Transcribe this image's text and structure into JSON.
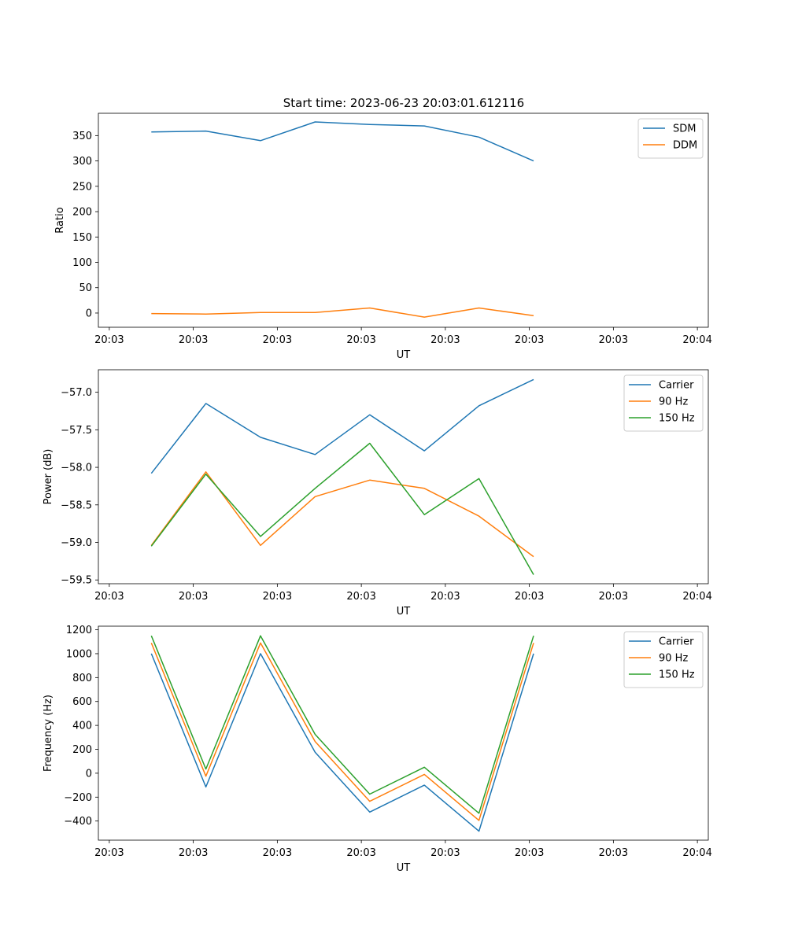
{
  "figure": {
    "title": "Start time: 2023-06-23 20:03:01.612116"
  },
  "colors": {
    "blue": "#1f77b4",
    "orange": "#ff7f0e",
    "green": "#2ca02c"
  },
  "chart_data": [
    {
      "type": "line",
      "xlabel": "UT",
      "ylabel": "Ratio",
      "x_tick_labels": [
        "20:03",
        "20:03",
        "20:03",
        "20:03",
        "20:03",
        "20:03",
        "20:03",
        "20:04"
      ],
      "x_tick_positions": [
        -1,
        0,
        1,
        2,
        3,
        4,
        5,
        6
      ],
      "xlim": [
        -1.13,
        6.13
      ],
      "x": [
        -0.5,
        0.15,
        0.8,
        1.45,
        2.1,
        2.75,
        3.4,
        4.05
      ],
      "ylim": [
        -28,
        394
      ],
      "yticks": [
        0,
        50,
        100,
        150,
        200,
        250,
        300,
        350
      ],
      "legend_position": "top-right",
      "series": [
        {
          "name": "SDM",
          "color": "#1f77b4",
          "values": [
            357,
            359,
            340,
            377,
            372,
            369,
            347,
            300
          ]
        },
        {
          "name": "DDM",
          "color": "#ff7f0e",
          "values": [
            -1,
            -2,
            1,
            1,
            10,
            -8,
            10,
            -5
          ]
        }
      ]
    },
    {
      "type": "line",
      "xlabel": "UT",
      "ylabel": "Power (dB)",
      "x_tick_labels": [
        "20:03",
        "20:03",
        "20:03",
        "20:03",
        "20:03",
        "20:03",
        "20:03",
        "20:04"
      ],
      "x_tick_positions": [
        -1,
        0,
        1,
        2,
        3,
        4,
        5,
        6
      ],
      "xlim": [
        -1.13,
        6.13
      ],
      "x": [
        -0.5,
        0.15,
        0.8,
        1.45,
        2.1,
        2.75,
        3.4,
        4.05
      ],
      "ylim": [
        -59.55,
        -56.7
      ],
      "yticks": [
        -59.5,
        -59.0,
        -58.5,
        -58.0,
        -57.5,
        -57.0
      ],
      "ytick_labels": [
        "−59.5",
        "−59.0",
        "−58.5",
        "−58.0",
        "−57.5",
        "−57.0"
      ],
      "legend_position": "top-right",
      "series": [
        {
          "name": "Carrier",
          "color": "#1f77b4",
          "values": [
            -58.08,
            -57.15,
            -57.6,
            -57.83,
            -57.3,
            -57.78,
            -57.18,
            -56.83
          ]
        },
        {
          "name": "90 Hz",
          "color": "#ff7f0e",
          "values": [
            -59.04,
            -58.06,
            -59.04,
            -58.39,
            -58.17,
            -58.28,
            -58.65,
            -59.19
          ]
        },
        {
          "name": "150 Hz",
          "color": "#2ca02c",
          "values": [
            -59.05,
            -58.09,
            -58.92,
            -58.28,
            -57.68,
            -58.63,
            -58.15,
            -59.43
          ]
        }
      ]
    },
    {
      "type": "line",
      "xlabel": "UT",
      "ylabel": "Frequency (Hz)",
      "x_tick_labels": [
        "20:03",
        "20:03",
        "20:03",
        "20:03",
        "20:03",
        "20:03",
        "20:03",
        "20:04"
      ],
      "x_tick_positions": [
        -1,
        0,
        1,
        2,
        3,
        4,
        5,
        6
      ],
      "xlim": [
        -1.13,
        6.13
      ],
      "x": [
        -0.5,
        0.15,
        0.8,
        1.45,
        2.1,
        2.75,
        3.4,
        4.05
      ],
      "ylim": [
        -560,
        1230
      ],
      "yticks": [
        -400,
        -200,
        0,
        200,
        400,
        600,
        800,
        1000,
        1200
      ],
      "ytick_labels": [
        "−400",
        "−200",
        "0",
        "200",
        "400",
        "600",
        "800",
        "1000",
        "1200"
      ],
      "legend_position": "top-right",
      "series": [
        {
          "name": "Carrier",
          "color": "#1f77b4",
          "values": [
            1000,
            -115,
            1000,
            175,
            -325,
            -100,
            -485,
            1000
          ]
        },
        {
          "name": "90 Hz",
          "color": "#ff7f0e",
          "values": [
            1090,
            -25,
            1090,
            265,
            -235,
            -10,
            -395,
            1090
          ]
        },
        {
          "name": "150 Hz",
          "color": "#2ca02c",
          "values": [
            1150,
            35,
            1150,
            325,
            -175,
            50,
            -335,
            1150
          ]
        }
      ]
    }
  ]
}
